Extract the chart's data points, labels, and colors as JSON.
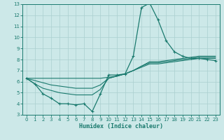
{
  "title": "",
  "xlabel": "Humidex (Indice chaleur)",
  "ylabel": "",
  "bg_color": "#cce8e8",
  "grid_color": "#aacfcf",
  "line_color": "#1a7a6e",
  "xlim": [
    -0.5,
    23.5
  ],
  "ylim": [
    3,
    13
  ],
  "xticks": [
    0,
    1,
    2,
    3,
    4,
    5,
    6,
    7,
    8,
    9,
    10,
    11,
    12,
    13,
    14,
    15,
    16,
    17,
    18,
    19,
    20,
    21,
    22,
    23
  ],
  "yticks": [
    3,
    4,
    5,
    6,
    7,
    8,
    9,
    10,
    11,
    12,
    13
  ],
  "series": [
    [
      6.3,
      5.8,
      4.9,
      4.5,
      4.0,
      4.0,
      3.9,
      4.0,
      3.3,
      4.9,
      6.6,
      6.6,
      6.7,
      8.3,
      12.7,
      13.1,
      11.6,
      9.7,
      8.7,
      8.3,
      8.1,
      8.1,
      8.0,
      7.9
    ],
    [
      6.3,
      5.8,
      5.4,
      5.2,
      5.0,
      4.9,
      4.8,
      4.8,
      4.8,
      5.3,
      6.3,
      6.5,
      6.7,
      7.0,
      7.3,
      7.6,
      7.6,
      7.7,
      7.8,
      7.9,
      8.0,
      8.1,
      8.1,
      8.1
    ],
    [
      6.3,
      6.1,
      5.9,
      5.7,
      5.6,
      5.5,
      5.4,
      5.4,
      5.4,
      5.7,
      6.3,
      6.5,
      6.7,
      7.0,
      7.4,
      7.7,
      7.7,
      7.8,
      7.9,
      8.0,
      8.1,
      8.2,
      8.2,
      8.2
    ],
    [
      6.3,
      6.3,
      6.3,
      6.3,
      6.3,
      6.3,
      6.3,
      6.3,
      6.3,
      6.3,
      6.4,
      6.5,
      6.7,
      7.0,
      7.4,
      7.8,
      7.8,
      7.9,
      8.0,
      8.1,
      8.2,
      8.3,
      8.3,
      8.3
    ]
  ],
  "markers": true
}
